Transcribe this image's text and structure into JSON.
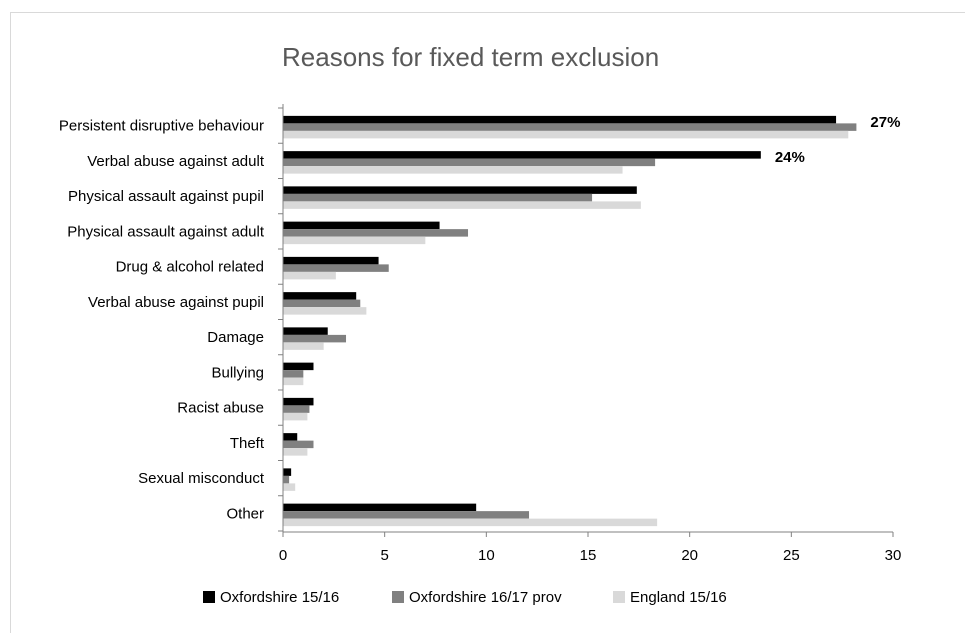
{
  "chart_data": {
    "type": "bar",
    "orientation": "horizontal",
    "title": "Reasons for fixed term exclusion",
    "categories": [
      "Persistent disruptive behaviour",
      "Verbal abuse against adult",
      "Physical assault against pupil",
      "Physical assault against adult",
      "Drug & alcohol related",
      "Verbal abuse against pupil",
      "Damage",
      "Bullying",
      "Racist abuse",
      "Theft",
      "Sexual misconduct",
      "Other"
    ],
    "series": [
      {
        "name": "Oxfordshire 15/16",
        "color": "#000000",
        "values": [
          27.2,
          23.5,
          17.4,
          7.7,
          4.7,
          3.6,
          2.2,
          1.5,
          1.5,
          0.7,
          0.4,
          9.5
        ]
      },
      {
        "name": "Oxfordshire 16/17 prov",
        "color": "#808080",
        "values": [
          28.2,
          18.3,
          15.2,
          9.1,
          5.2,
          3.8,
          3.1,
          1.0,
          1.3,
          1.5,
          0.3,
          12.1
        ]
      },
      {
        "name": "England 15/16",
        "color": "#d9d9d9",
        "values": [
          27.8,
          16.7,
          17.6,
          7.0,
          2.6,
          4.1,
          2.0,
          1.0,
          1.2,
          1.2,
          0.6,
          18.4
        ]
      }
    ],
    "data_labels": [
      {
        "category": "Persistent disruptive behaviour",
        "text": "27%"
      },
      {
        "category": "Verbal abuse against adult",
        "text": "24%"
      }
    ],
    "xlim": [
      0,
      30
    ],
    "xticks": [
      "0",
      "5",
      "10",
      "15",
      "20",
      "25",
      "30"
    ],
    "grid": false,
    "legend_position": "bottom"
  }
}
